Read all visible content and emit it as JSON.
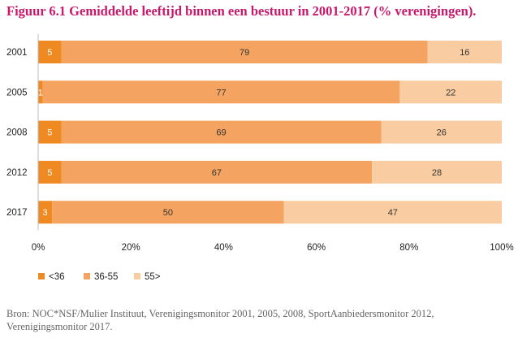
{
  "figure": {
    "title": "Figuur 6.1 Gemiddelde leeftijd binnen een bestuur in 2001-2017 (% verenigingen).",
    "source": "Bron: NOC*NSF/Mulier Instituut, Verenigingsmonitor 2001, 2005, 2008, SportAanbiedersmonitor 2012, Verenigingsmonitor 2017."
  },
  "chart_data": {
    "type": "bar",
    "orientation": "horizontal",
    "stacked": true,
    "title": "Figuur 6.1 Gemiddelde leeftijd binnen een bestuur in 2001-2017 (% verenigingen).",
    "categories": [
      "2001",
      "2005",
      "2008",
      "2012",
      "2017"
    ],
    "series": [
      {
        "name": "<36",
        "color": "#ef8a22",
        "values": [
          5,
          1,
          5,
          5,
          3
        ]
      },
      {
        "name": "36-55",
        "color": "#f4a460",
        "values": [
          79,
          77,
          69,
          67,
          50
        ]
      },
      {
        "name": "55>",
        "color": "#f9cda1",
        "values": [
          16,
          22,
          26,
          28,
          47
        ]
      }
    ],
    "xlim": [
      0,
      100
    ],
    "xticks": [
      "0%",
      "20%",
      "40%",
      "60%",
      "80%",
      "100%"
    ],
    "xlabel": "",
    "ylabel": "",
    "legend_position": "bottom-left",
    "grid": false
  }
}
